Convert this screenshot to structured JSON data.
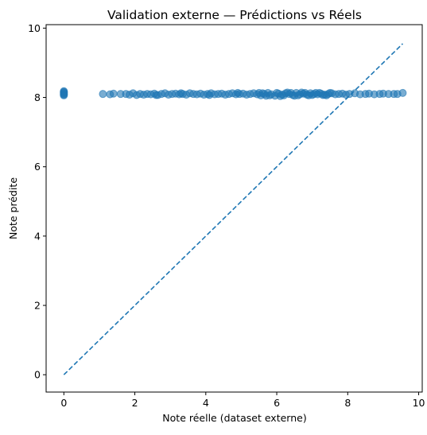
{
  "chart_data": {
    "type": "scatter",
    "title": "Validation externe — Prédictions vs Réels",
    "xlabel": "Note réelle (dataset externe)",
    "ylabel": "Note prédite",
    "xlim": [
      -0.5,
      10.1
    ],
    "ylim": [
      -0.5,
      10.1
    ],
    "xticks": [
      0,
      2,
      4,
      6,
      8,
      10
    ],
    "yticks": [
      0,
      2,
      4,
      6,
      8,
      10
    ],
    "grid": false,
    "colors": {
      "points": "#1f77b4",
      "reference_line": "#1f77b4",
      "axes": "#000000"
    },
    "reference_line": {
      "style": "dashed",
      "x": [
        0,
        9.55
      ],
      "y": [
        0,
        9.55
      ]
    },
    "series": [
      {
        "points": [
          [
            0,
            8.08
          ],
          [
            0,
            8.1
          ],
          [
            0,
            8.12
          ],
          [
            0,
            8.14
          ],
          [
            0,
            8.16
          ],
          [
            0,
            8.18
          ],
          [
            0,
            8.06
          ],
          [
            1.1,
            8.1
          ],
          [
            1.3,
            8.09
          ],
          [
            1.4,
            8.11
          ],
          [
            1.6,
            8.1
          ],
          [
            1.75,
            8.1
          ],
          [
            1.85,
            8.08
          ],
          [
            1.95,
            8.12
          ],
          [
            2.05,
            8.07
          ],
          [
            2.15,
            8.1
          ],
          [
            2.25,
            8.08
          ],
          [
            2.35,
            8.1
          ],
          [
            2.45,
            8.09
          ],
          [
            2.55,
            8.11
          ],
          [
            2.65,
            8.07
          ],
          [
            2.75,
            8.1
          ],
          [
            2.85,
            8.12
          ],
          [
            2.95,
            8.08
          ],
          [
            3.05,
            8.1
          ],
          [
            3.15,
            8.11
          ],
          [
            3.25,
            8.09
          ],
          [
            3.35,
            8.1
          ],
          [
            3.45,
            8.08
          ],
          [
            3.55,
            8.12
          ],
          [
            3.65,
            8.1
          ],
          [
            3.75,
            8.09
          ],
          [
            3.85,
            8.11
          ],
          [
            3.95,
            8.08
          ],
          [
            4.05,
            8.1
          ],
          [
            4.15,
            8.12
          ],
          [
            4.25,
            8.09
          ],
          [
            4.35,
            8.1
          ],
          [
            4.45,
            8.11
          ],
          [
            4.55,
            8.08
          ],
          [
            4.65,
            8.1
          ],
          [
            4.75,
            8.12
          ],
          [
            4.85,
            8.09
          ],
          [
            4.95,
            8.1
          ],
          [
            5.05,
            8.11
          ],
          [
            5.15,
            8.08
          ],
          [
            5.25,
            8.1
          ],
          [
            5.35,
            8.12
          ],
          [
            5.45,
            8.09
          ],
          [
            5.55,
            8.06
          ],
          [
            5.65,
            8.1
          ],
          [
            5.75,
            8.13
          ],
          [
            5.85,
            8.09
          ],
          [
            5.95,
            8.05
          ],
          [
            6.05,
            8.11
          ],
          [
            6.15,
            8.08
          ],
          [
            6.25,
            8.12
          ],
          [
            6.35,
            8.1
          ],
          [
            6.45,
            8.07
          ],
          [
            6.55,
            8.13
          ],
          [
            6.65,
            8.09
          ],
          [
            6.75,
            8.11
          ],
          [
            6.85,
            8.08
          ],
          [
            6.95,
            8.12
          ],
          [
            7.05,
            8.1
          ],
          [
            7.15,
            8.09
          ],
          [
            7.25,
            8.11
          ],
          [
            7.35,
            8.08
          ],
          [
            7.45,
            8.1
          ],
          [
            7.55,
            8.12
          ],
          [
            7.65,
            8.09
          ],
          [
            7.75,
            8.1
          ],
          [
            7.85,
            8.11
          ],
          [
            7.95,
            8.08
          ],
          [
            8.05,
            8.1
          ],
          [
            8.2,
            8.12
          ],
          [
            8.35,
            8.09
          ],
          [
            8.5,
            8.1
          ],
          [
            8.6,
            8.11
          ],
          [
            8.75,
            8.09
          ],
          [
            8.9,
            8.1
          ],
          [
            9.0,
            8.11
          ],
          [
            9.15,
            8.1
          ],
          [
            9.3,
            8.1
          ],
          [
            9.4,
            8.1
          ],
          [
            9.55,
            8.13
          ],
          [
            2.6,
            8.07
          ],
          [
            3.3,
            8.12
          ],
          [
            4.1,
            8.07
          ],
          [
            4.9,
            8.13
          ],
          [
            5.6,
            8.12
          ],
          [
            5.8,
            8.06
          ],
          [
            6.0,
            8.13
          ],
          [
            6.2,
            8.06
          ],
          [
            6.4,
            8.13
          ],
          [
            6.6,
            8.06
          ],
          [
            6.8,
            8.13
          ],
          [
            7.0,
            8.07
          ],
          [
            7.2,
            8.13
          ],
          [
            7.4,
            8.06
          ],
          [
            5.5,
            8.13
          ],
          [
            5.7,
            8.05
          ],
          [
            6.1,
            8.04
          ],
          [
            6.3,
            8.14
          ],
          [
            6.5,
            8.05
          ],
          [
            6.7,
            8.14
          ],
          [
            6.9,
            8.06
          ],
          [
            7.1,
            8.13
          ],
          [
            7.3,
            8.07
          ],
          [
            7.5,
            8.13
          ]
        ]
      }
    ]
  }
}
